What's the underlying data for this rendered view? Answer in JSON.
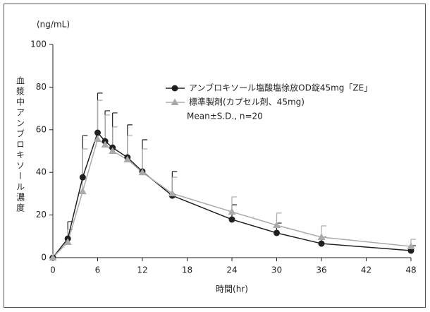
{
  "chart_data": {
    "type": "line",
    "y_label": "(ng/mL)",
    "y_title": "血漿中アンブロキソール濃度",
    "x_label": "時間(hr)",
    "annotation": "Mean±S.D., n=20",
    "x": [
      0,
      2,
      4,
      6,
      7,
      8,
      10,
      12,
      16,
      24,
      30,
      36,
      48
    ],
    "series": [
      {
        "name": "アンブロキソール塩酸塩徐放OD錠45mg「ZE」",
        "color": "#231f20",
        "marker": "circle",
        "values": [
          0,
          8.9,
          37.7,
          58.6,
          54.6,
          51.6,
          47,
          40.4,
          29.1,
          17.9,
          11.6,
          6.6,
          3.3
        ],
        "errors": [
          null,
          8,
          19.6,
          18.6,
          14.3,
          16.3,
          15.3,
          14.9,
          11.3,
          6.9,
          4.6,
          3,
          2.3
        ]
      },
      {
        "name": "標準製剤(カプセル剤、45mg)",
        "color": "#aaaaaa",
        "marker": "triangle",
        "values": [
          0,
          7.3,
          31.1,
          55.6,
          53,
          50,
          46,
          40,
          30.1,
          21.5,
          15.2,
          9.6,
          5.3
        ],
        "errors": [
          null,
          5.9,
          19.9,
          18.2,
          13.9,
          11.3,
          11.3,
          11,
          7.6,
          7,
          5.7,
          5.3,
          3.3
        ]
      }
    ],
    "xlim": [
      0,
      48
    ],
    "xticks": [
      0,
      6,
      12,
      18,
      24,
      30,
      36,
      42,
      48
    ],
    "ylim": [
      0,
      100
    ],
    "yticks": [
      0,
      20,
      40,
      60,
      80,
      100
    ],
    "grid": false
  }
}
